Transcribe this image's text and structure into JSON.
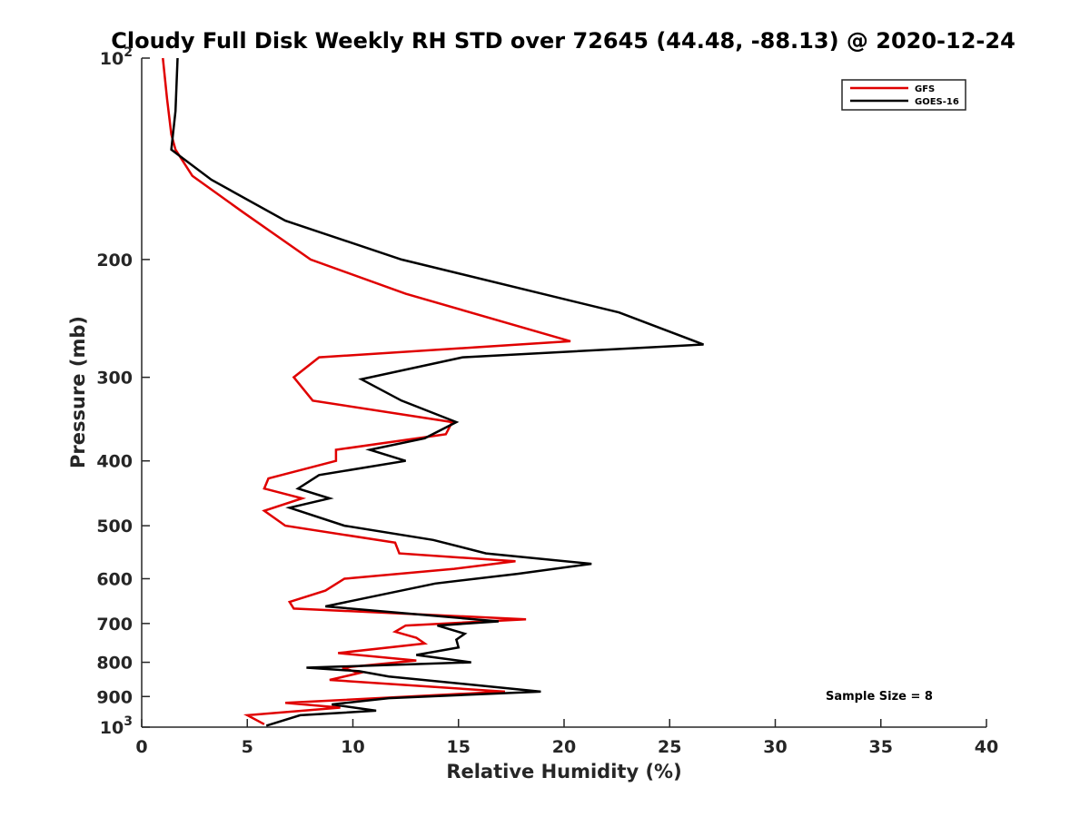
{
  "chart_data": {
    "type": "line",
    "title": "Cloudy Full Disk Weekly RH STD over 72645 (44.48, -88.13) @ 2020-12-24",
    "xlabel": "Relative Humidity (%)",
    "ylabel": "Pressure (mb)",
    "xlim": [
      0,
      40
    ],
    "ylim": [
      100,
      1000
    ],
    "y_scale": "log",
    "y_reversed": true,
    "grid": false,
    "legend_position": "top-right",
    "x_ticks": [
      "0",
      "5",
      "10",
      "15",
      "20",
      "25",
      "30",
      "35",
      "40"
    ],
    "y_ticks": [
      {
        "value": 100,
        "base": "10",
        "exp": "2"
      },
      {
        "value": 200,
        "label": "200"
      },
      {
        "value": 300,
        "label": "300"
      },
      {
        "value": 400,
        "label": "400"
      },
      {
        "value": 500,
        "label": "500"
      },
      {
        "value": 600,
        "label": "600"
      },
      {
        "value": 700,
        "label": "700"
      },
      {
        "value": 800,
        "label": "800"
      },
      {
        "value": 900,
        "label": "900"
      },
      {
        "value": 1000,
        "base": "10",
        "exp": "3"
      }
    ],
    "annotation": "Sample Size = 8",
    "series": [
      {
        "name": "GFS",
        "color": "#e00000",
        "points": [
          [
            1.0,
            100
          ],
          [
            1.2,
            115
          ],
          [
            1.4,
            130
          ],
          [
            1.6,
            137
          ],
          [
            2.4,
            150
          ],
          [
            4.8,
            170
          ],
          [
            8.0,
            200
          ],
          [
            12.5,
            225
          ],
          [
            20.3,
            265
          ],
          [
            8.4,
            280
          ],
          [
            7.2,
            300
          ],
          [
            8.1,
            325
          ],
          [
            14.7,
            350
          ],
          [
            14.6,
            355
          ],
          [
            14.4,
            365
          ],
          [
            9.2,
            385
          ],
          [
            9.2,
            400
          ],
          [
            6.0,
            425
          ],
          [
            5.8,
            440
          ],
          [
            7.6,
            455
          ],
          [
            5.8,
            475
          ],
          [
            6.8,
            500
          ],
          [
            12.0,
            530
          ],
          [
            12.2,
            550
          ],
          [
            17.7,
            565
          ],
          [
            14.8,
            580
          ],
          [
            9.6,
            600
          ],
          [
            8.7,
            625
          ],
          [
            7.0,
            650
          ],
          [
            7.2,
            665
          ],
          [
            18.2,
            690
          ],
          [
            12.5,
            705
          ],
          [
            12.0,
            720
          ],
          [
            13.0,
            735
          ],
          [
            13.4,
            750
          ],
          [
            9.3,
            775
          ],
          [
            13.0,
            795
          ],
          [
            9.5,
            815
          ],
          [
            10.3,
            830
          ],
          [
            8.9,
            850
          ],
          [
            17.2,
            885
          ],
          [
            6.8,
            920
          ],
          [
            9.4,
            935
          ],
          [
            5.0,
            960
          ],
          [
            5.8,
            990
          ]
        ]
      },
      {
        "name": "GOES-16",
        "color": "#000000",
        "points": [
          [
            1.7,
            100
          ],
          [
            1.6,
            120
          ],
          [
            1.4,
            137
          ],
          [
            1.8,
            140
          ],
          [
            3.3,
            152
          ],
          [
            6.8,
            175
          ],
          [
            12.3,
            200
          ],
          [
            22.6,
            240
          ],
          [
            26.6,
            268
          ],
          [
            15.2,
            280
          ],
          [
            10.4,
            302
          ],
          [
            12.3,
            325
          ],
          [
            14.9,
            350
          ],
          [
            13.4,
            370
          ],
          [
            10.8,
            385
          ],
          [
            12.5,
            400
          ],
          [
            8.4,
            420
          ],
          [
            7.4,
            440
          ],
          [
            8.9,
            455
          ],
          [
            7.0,
            470
          ],
          [
            9.6,
            500
          ],
          [
            13.8,
            525
          ],
          [
            16.3,
            550
          ],
          [
            21.3,
            570
          ],
          [
            17.8,
            590
          ],
          [
            13.9,
            610
          ],
          [
            8.7,
            660
          ],
          [
            16.9,
            695
          ],
          [
            14.0,
            705
          ],
          [
            15.3,
            725
          ],
          [
            14.9,
            740
          ],
          [
            15.0,
            760
          ],
          [
            13.0,
            780
          ],
          [
            15.6,
            800
          ],
          [
            7.8,
            815
          ],
          [
            10.3,
            825
          ],
          [
            11.7,
            840
          ],
          [
            18.9,
            885
          ],
          [
            11.7,
            905
          ],
          [
            9.0,
            925
          ],
          [
            11.1,
            945
          ],
          [
            7.5,
            960
          ],
          [
            5.9,
            995
          ]
        ]
      }
    ]
  }
}
